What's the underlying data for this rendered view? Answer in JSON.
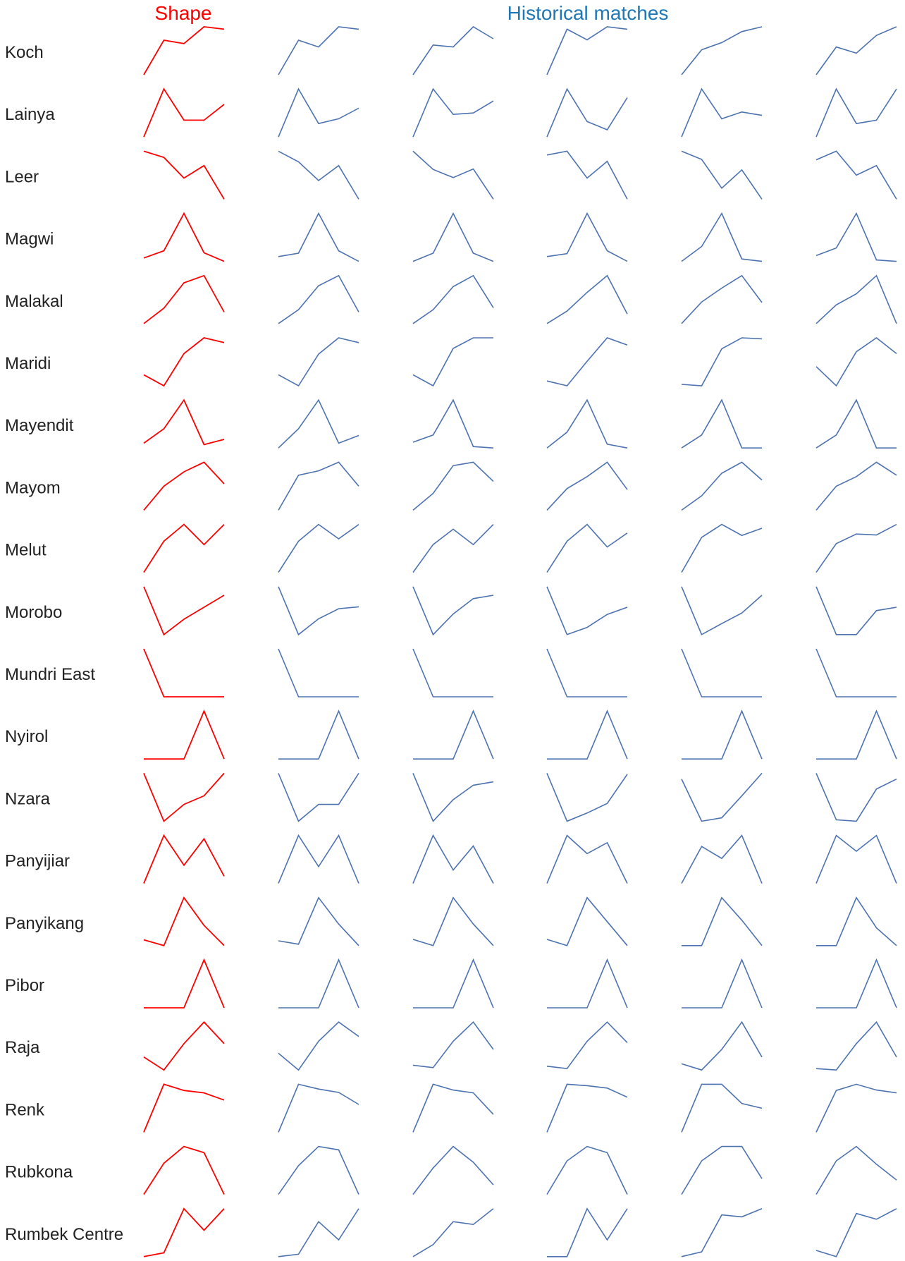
{
  "headers": {
    "shape": "Shape",
    "matches": "Historical matches"
  },
  "colors": {
    "shape": "#ff0000",
    "match": "#4c72b0",
    "matches_title": "#1f77b4",
    "label": "#222222"
  },
  "chart_data": {
    "type": "line",
    "description_role": "small-multiples sparkline grid: one red query shape per region followed by five blue historical-match sparklines",
    "x": [
      0,
      1,
      2,
      3,
      4
    ],
    "ylim": [
      0,
      1
    ],
    "grid": false,
    "rows": [
      {
        "label": "Koch",
        "shape": [
          0.0,
          0.72,
          0.65,
          1.0,
          0.95
        ],
        "matches": [
          [
            0.0,
            0.72,
            0.58,
            1.0,
            0.95
          ],
          [
            0.0,
            0.62,
            0.58,
            1.0,
            0.75
          ],
          [
            0.0,
            0.95,
            0.73,
            1.0,
            0.95
          ],
          [
            0.0,
            0.52,
            0.67,
            0.9,
            1.0
          ],
          [
            0.0,
            0.58,
            0.45,
            0.82,
            1.0
          ]
        ]
      },
      {
        "label": "Lainya",
        "shape": [
          0.0,
          1.0,
          0.35,
          0.35,
          0.68
        ],
        "matches": [
          [
            0.0,
            1.0,
            0.28,
            0.38,
            0.6
          ],
          [
            0.0,
            1.0,
            0.47,
            0.5,
            0.75
          ],
          [
            0.0,
            1.0,
            0.32,
            0.15,
            0.82
          ],
          [
            0.0,
            1.0,
            0.38,
            0.52,
            0.45
          ],
          [
            0.0,
            1.0,
            0.28,
            0.35,
            1.0
          ]
        ]
      },
      {
        "label": "Leer",
        "shape": [
          1.0,
          0.87,
          0.44,
          0.7,
          0.0
        ],
        "matches": [
          [
            1.0,
            0.78,
            0.39,
            0.7,
            0.0
          ],
          [
            1.0,
            0.62,
            0.45,
            0.63,
            0.0
          ],
          [
            0.92,
            1.0,
            0.44,
            0.79,
            0.0
          ],
          [
            1.0,
            0.83,
            0.23,
            0.61,
            0.0
          ],
          [
            0.82,
            1.0,
            0.5,
            0.7,
            0.0
          ]
        ]
      },
      {
        "label": "Magwi",
        "shape": [
          0.07,
          0.22,
          1.0,
          0.18,
          0.0
        ],
        "matches": [
          [
            0.1,
            0.17,
            1.0,
            0.22,
            0.0
          ],
          [
            0.0,
            0.17,
            1.0,
            0.17,
            0.0
          ],
          [
            0.1,
            0.16,
            1.0,
            0.22,
            0.0
          ],
          [
            0.0,
            0.31,
            1.0,
            0.05,
            0.0
          ],
          [
            0.12,
            0.28,
            1.0,
            0.03,
            0.0
          ]
        ]
      },
      {
        "label": "Malakal",
        "shape": [
          0.0,
          0.32,
          0.85,
          1.0,
          0.24
        ],
        "matches": [
          [
            0.0,
            0.29,
            0.79,
            1.0,
            0.24
          ],
          [
            0.0,
            0.29,
            0.77,
            1.0,
            0.33
          ],
          [
            0.0,
            0.26,
            0.65,
            1.0,
            0.2
          ],
          [
            0.0,
            0.45,
            0.74,
            1.0,
            0.44
          ],
          [
            0.0,
            0.39,
            0.62,
            1.0,
            0.0
          ]
        ]
      },
      {
        "label": "Maridi",
        "shape": [
          0.23,
          0.0,
          0.67,
          1.0,
          0.9
        ],
        "matches": [
          [
            0.23,
            0.0,
            0.66,
            1.0,
            0.9
          ],
          [
            0.23,
            0.0,
            0.78,
            1.0,
            1.0
          ],
          [
            0.1,
            0.0,
            0.51,
            1.0,
            0.85
          ],
          [
            0.03,
            0.0,
            0.77,
            1.0,
            0.98
          ],
          [
            0.4,
            0.0,
            0.71,
            1.0,
            0.67
          ]
        ]
      },
      {
        "label": "Mayendit",
        "shape": [
          0.1,
          0.4,
          1.0,
          0.07,
          0.18
        ],
        "matches": [
          [
            0.0,
            0.4,
            1.0,
            0.1,
            0.26
          ],
          [
            0.12,
            0.27,
            1.0,
            0.03,
            0.0
          ],
          [
            0.0,
            0.33,
            1.0,
            0.08,
            0.0
          ],
          [
            0.0,
            0.27,
            1.0,
            0.0,
            0.0
          ],
          [
            0.0,
            0.27,
            1.0,
            0.0,
            0.0
          ]
        ]
      },
      {
        "label": "Mayom",
        "shape": [
          0.0,
          0.5,
          0.8,
          1.0,
          0.55
        ],
        "matches": [
          [
            0.0,
            0.73,
            0.82,
            1.0,
            0.5
          ],
          [
            0.0,
            0.35,
            0.93,
            1.0,
            0.6
          ],
          [
            0.0,
            0.45,
            0.7,
            1.0,
            0.43
          ],
          [
            0.0,
            0.3,
            0.77,
            1.0,
            0.63
          ],
          [
            0.0,
            0.5,
            0.7,
            1.0,
            0.73
          ]
        ]
      },
      {
        "label": "Melut",
        "shape": [
          0.0,
          0.65,
          1.0,
          0.58,
          1.0
        ],
        "matches": [
          [
            0.0,
            0.65,
            1.0,
            0.7,
            1.0
          ],
          [
            0.0,
            0.58,
            0.9,
            0.58,
            1.0
          ],
          [
            0.0,
            0.65,
            1.0,
            0.53,
            0.82
          ],
          [
            0.0,
            0.73,
            1.0,
            0.77,
            0.92
          ],
          [
            0.0,
            0.6,
            0.8,
            0.78,
            1.0
          ]
        ]
      },
      {
        "label": "Morobo",
        "shape": [
          1.0,
          0.0,
          0.32,
          0.57,
          0.82
        ],
        "matches": [
          [
            1.0,
            0.0,
            0.33,
            0.54,
            0.58
          ],
          [
            1.0,
            0.0,
            0.43,
            0.75,
            0.82
          ],
          [
            1.0,
            0.0,
            0.15,
            0.42,
            0.57
          ],
          [
            1.0,
            0.0,
            0.23,
            0.45,
            0.82
          ],
          [
            1.0,
            0.0,
            0.0,
            0.5,
            0.57
          ]
        ]
      },
      {
        "label": "Mundri East",
        "shape": [
          1.0,
          0.0,
          0.0,
          0.0,
          0.0
        ],
        "matches": [
          [
            1.0,
            0.0,
            0.0,
            0.0,
            0.0
          ],
          [
            1.0,
            0.0,
            0.0,
            0.0,
            0.0
          ],
          [
            1.0,
            0.0,
            0.0,
            0.0,
            0.0
          ],
          [
            1.0,
            0.0,
            0.0,
            0.0,
            0.0
          ],
          [
            1.0,
            0.0,
            0.0,
            0.0,
            0.0
          ]
        ]
      },
      {
        "label": "Nyirol",
        "shape": [
          0.0,
          0.0,
          0.0,
          1.0,
          0.0
        ],
        "matches": [
          [
            0.0,
            0.0,
            0.0,
            1.0,
            0.0
          ],
          [
            0.0,
            0.0,
            0.0,
            1.0,
            0.0
          ],
          [
            0.0,
            0.0,
            0.0,
            1.0,
            0.0
          ],
          [
            0.0,
            0.0,
            0.0,
            1.0,
            0.0
          ],
          [
            0.0,
            0.0,
            0.0,
            1.0,
            0.0
          ]
        ]
      },
      {
        "label": "Nzara",
        "shape": [
          1.0,
          0.0,
          0.35,
          0.53,
          1.0
        ],
        "matches": [
          [
            1.0,
            0.0,
            0.35,
            0.35,
            1.0
          ],
          [
            1.0,
            0.0,
            0.45,
            0.75,
            0.82
          ],
          [
            1.0,
            0.0,
            0.17,
            0.37,
            0.98
          ],
          [
            0.88,
            0.0,
            0.07,
            0.53,
            1.0
          ],
          [
            1.0,
            0.03,
            0.0,
            0.67,
            0.88
          ]
        ]
      },
      {
        "label": "Panyijiar",
        "shape": [
          0.0,
          1.0,
          0.38,
          0.93,
          0.15
        ],
        "matches": [
          [
            0.0,
            1.0,
            0.35,
            1.0,
            0.0
          ],
          [
            0.0,
            1.0,
            0.28,
            0.78,
            0.0
          ],
          [
            0.0,
            1.0,
            0.62,
            0.85,
            0.0
          ],
          [
            0.0,
            0.77,
            0.52,
            1.0,
            0.0
          ],
          [
            0.0,
            1.0,
            0.67,
            1.0,
            0.0
          ]
        ]
      },
      {
        "label": "Panyikang",
        "shape": [
          0.12,
          0.0,
          1.0,
          0.42,
          0.0
        ],
        "matches": [
          [
            0.1,
            0.03,
            1.0,
            0.45,
            0.0
          ],
          [
            0.13,
            0.0,
            1.0,
            0.45,
            0.0
          ],
          [
            0.13,
            0.0,
            1.0,
            0.5,
            0.0
          ],
          [
            0.0,
            0.0,
            1.0,
            0.53,
            0.0
          ],
          [
            0.0,
            0.0,
            1.0,
            0.37,
            0.0
          ]
        ]
      },
      {
        "label": "Pibor",
        "shape": [
          0.0,
          0.0,
          0.0,
          1.0,
          0.0
        ],
        "matches": [
          [
            0.0,
            0.0,
            0.0,
            1.0,
            0.0
          ],
          [
            0.0,
            0.0,
            0.0,
            1.0,
            0.0
          ],
          [
            0.0,
            0.0,
            0.0,
            1.0,
            0.0
          ],
          [
            0.0,
            0.0,
            0.0,
            1.0,
            0.0
          ],
          [
            0.0,
            0.0,
            0.0,
            1.0,
            0.0
          ]
        ]
      },
      {
        "label": "Raja",
        "shape": [
          0.27,
          0.0,
          0.55,
          1.0,
          0.55
        ],
        "matches": [
          [
            0.35,
            0.0,
            0.6,
            1.0,
            0.7
          ],
          [
            0.1,
            0.05,
            0.6,
            1.0,
            0.43
          ],
          [
            0.08,
            0.03,
            0.6,
            1.0,
            0.57
          ],
          [
            0.13,
            0.0,
            0.43,
            1.0,
            0.27
          ],
          [
            0.03,
            0.0,
            0.55,
            1.0,
            0.27
          ]
        ]
      },
      {
        "label": "Renk",
        "shape": [
          0.0,
          1.0,
          0.87,
          0.82,
          0.67
        ],
        "matches": [
          [
            0.0,
            1.0,
            0.9,
            0.83,
            0.58
          ],
          [
            0.0,
            1.0,
            0.88,
            0.82,
            0.37
          ],
          [
            0.0,
            1.0,
            0.97,
            0.92,
            0.73
          ],
          [
            0.0,
            1.0,
            1.0,
            0.6,
            0.5
          ],
          [
            0.0,
            0.87,
            1.0,
            0.88,
            0.82
          ]
        ]
      },
      {
        "label": "Rubkona",
        "shape": [
          0.0,
          0.65,
          1.0,
          0.87,
          0.0
        ],
        "matches": [
          [
            0.0,
            0.6,
            1.0,
            0.93,
            0.0
          ],
          [
            0.0,
            0.55,
            1.0,
            0.67,
            0.2
          ],
          [
            0.0,
            0.7,
            1.0,
            0.87,
            0.0
          ],
          [
            0.0,
            0.7,
            1.0,
            1.0,
            0.33
          ],
          [
            0.0,
            0.7,
            1.0,
            0.63,
            0.3
          ]
        ]
      },
      {
        "label": "Rumbek Centre",
        "shape": [
          0.0,
          0.08,
          1.0,
          0.55,
          1.0
        ],
        "matches": [
          [
            0.0,
            0.05,
            0.73,
            0.35,
            1.0
          ],
          [
            0.0,
            0.25,
            0.73,
            0.67,
            1.0
          ],
          [
            0.0,
            0.0,
            1.0,
            0.35,
            1.0
          ],
          [
            0.0,
            0.1,
            0.87,
            0.83,
            1.0
          ],
          [
            0.13,
            0.0,
            0.9,
            0.78,
            1.0
          ]
        ]
      }
    ]
  }
}
